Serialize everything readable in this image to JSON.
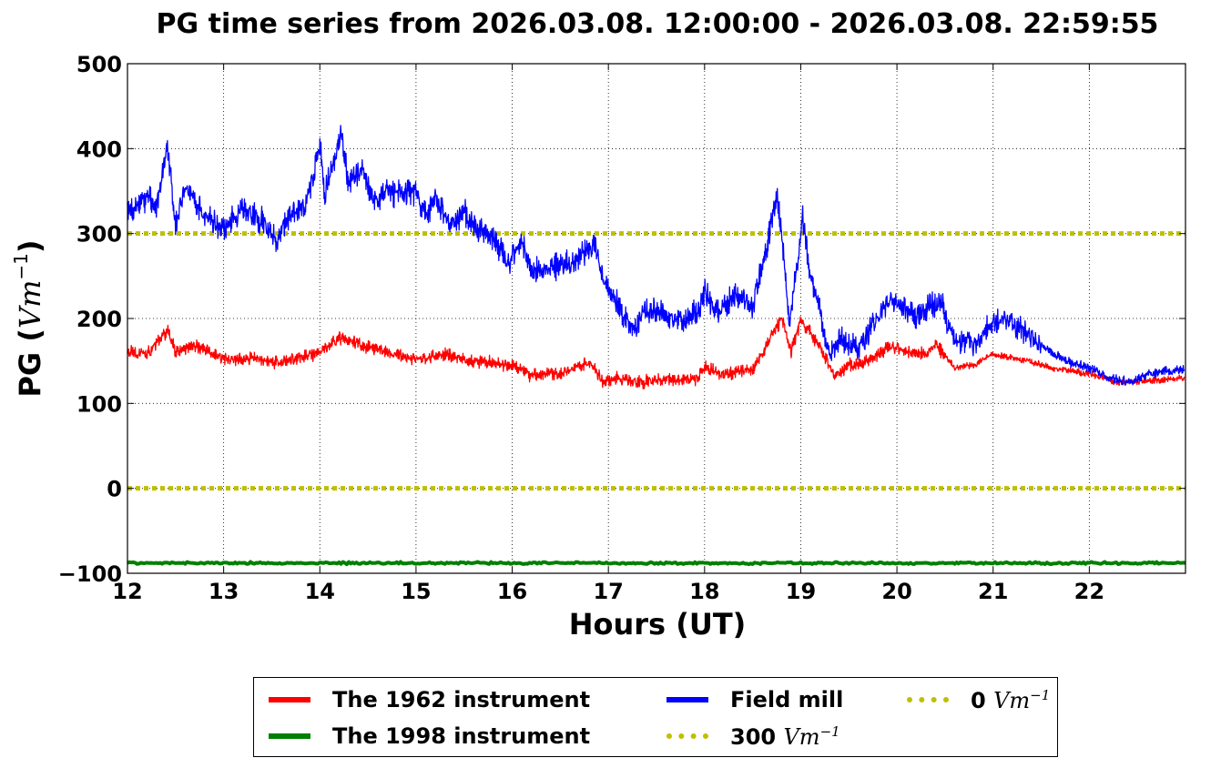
{
  "chart_data": {
    "type": "line",
    "title": "PG time series from 2026.03.08. 12:00:00 - 2026.03.08. 22:59:55",
    "xlabel": "Hours (UT)",
    "ylabel_main": "PG (",
    "ylabel_unit": "Vm",
    "ylabel_exp": "−1",
    "ylabel_close": ")",
    "xlim": [
      12,
      23
    ],
    "ylim": [
      -100,
      500
    ],
    "x_ticks": [
      12,
      13,
      14,
      15,
      16,
      17,
      18,
      19,
      20,
      21,
      22
    ],
    "x_tick_labels": [
      "12",
      "13",
      "14",
      "15",
      "16",
      "17",
      "18",
      "19",
      "20",
      "21",
      "22"
    ],
    "y_ticks": [
      -100,
      0,
      100,
      200,
      300,
      400,
      500
    ],
    "y_tick_labels": [
      "−100",
      "0",
      "100",
      "200",
      "300",
      "400",
      "500"
    ],
    "grid": true,
    "legend_position": "below",
    "series": [
      {
        "name": "The 1962 instrument",
        "color": "#ff0000",
        "x": [
          12.0,
          12.2,
          12.3,
          12.42,
          12.5,
          12.7,
          13.0,
          13.3,
          13.5,
          13.7,
          14.0,
          14.2,
          14.4,
          14.7,
          15.0,
          15.3,
          15.6,
          16.0,
          16.2,
          16.5,
          16.8,
          16.95,
          17.1,
          17.3,
          17.6,
          17.9,
          18.0,
          18.2,
          18.5,
          18.7,
          18.8,
          18.9,
          19.0,
          19.2,
          19.35,
          19.5,
          19.7,
          19.95,
          20.1,
          20.3,
          20.4,
          20.6,
          20.8,
          21.0,
          21.3,
          21.6,
          22.0,
          22.3,
          22.5,
          22.8,
          22.99
        ],
        "y": [
          160,
          158,
          172,
          185,
          160,
          168,
          152,
          153,
          148,
          150,
          160,
          178,
          170,
          160,
          152,
          158,
          150,
          145,
          133,
          135,
          148,
          125,
          130,
          125,
          128,
          128,
          142,
          135,
          140,
          180,
          200,
          160,
          198,
          168,
          132,
          145,
          150,
          168,
          160,
          158,
          170,
          142,
          145,
          158,
          152,
          142,
          135,
          125,
          126,
          128,
          130
        ]
      },
      {
        "name": "Field mill",
        "color": "#0000ff",
        "x": [
          12.0,
          12.1,
          12.2,
          12.3,
          12.42,
          12.5,
          12.6,
          12.8,
          13.0,
          13.2,
          13.4,
          13.55,
          13.7,
          13.85,
          14.0,
          14.05,
          14.15,
          14.22,
          14.3,
          14.45,
          14.55,
          14.7,
          14.85,
          15.0,
          15.1,
          15.2,
          15.35,
          15.5,
          15.65,
          15.8,
          15.95,
          16.1,
          16.2,
          16.4,
          16.6,
          16.7,
          16.85,
          16.95,
          17.05,
          17.15,
          17.25,
          17.4,
          17.6,
          17.8,
          17.95,
          18.0,
          18.15,
          18.3,
          18.5,
          18.65,
          18.75,
          18.8,
          18.88,
          18.95,
          19.02,
          19.1,
          19.2,
          19.3,
          19.4,
          19.6,
          19.8,
          19.95,
          20.05,
          20.2,
          20.35,
          20.45,
          20.6,
          20.8,
          21.0,
          21.2,
          21.4,
          21.6,
          21.8,
          22.0,
          22.2,
          22.45,
          22.6,
          22.8,
          22.99
        ],
        "y": [
          325,
          330,
          345,
          330,
          400,
          310,
          355,
          320,
          305,
          330,
          315,
          290,
          325,
          330,
          405,
          345,
          390,
          420,
          360,
          375,
          340,
          350,
          345,
          350,
          320,
          345,
          310,
          325,
          305,
          295,
          265,
          290,
          255,
          260,
          265,
          270,
          290,
          240,
          230,
          205,
          190,
          210,
          205,
          195,
          215,
          230,
          205,
          230,
          215,
          285,
          350,
          300,
          195,
          250,
          320,
          250,
          210,
          155,
          175,
          165,
          200,
          225,
          215,
          200,
          215,
          220,
          175,
          170,
          195,
          195,
          180,
          160,
          148,
          142,
          130,
          125,
          135,
          138,
          140
        ]
      },
      {
        "name": "The 1998 instrument",
        "color": "#008000",
        "x": [
          12,
          23
        ],
        "y": [
          -88,
          -88
        ]
      }
    ],
    "reference_lines": [
      {
        "name": "300",
        "value": 300,
        "color": "#bfbf00"
      },
      {
        "name": "0",
        "value": 0,
        "color": "#bfbf00"
      }
    ],
    "legend": [
      {
        "label": "The 1962 instrument",
        "unit": "",
        "exp": "",
        "color": "#ff0000",
        "style": "solid"
      },
      {
        "label": "The 1998 instrument",
        "unit": "",
        "exp": "",
        "color": "#008000",
        "style": "solid"
      },
      {
        "label": "Field mill",
        "unit": "",
        "exp": "",
        "color": "#0000ff",
        "style": "solid"
      },
      {
        "label": "300",
        "unit": "Vm",
        "exp": "−1",
        "color": "#bfbf00",
        "style": "dotted"
      },
      {
        "label": "0",
        "unit": "Vm",
        "exp": "−1",
        "color": "#bfbf00",
        "style": "dotted"
      }
    ]
  }
}
